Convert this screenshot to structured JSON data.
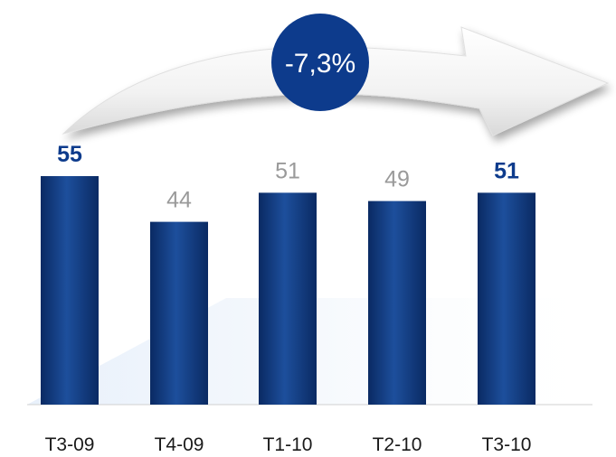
{
  "chart_data": {
    "type": "bar",
    "categories": [
      "T3-09",
      "T4-09",
      "T1-10",
      "T2-10",
      "T3-10"
    ],
    "values": [
      55,
      44,
      51,
      49,
      51
    ],
    "value_labels": [
      "55",
      "44",
      "51",
      "49",
      "51"
    ],
    "highlighted": [
      true,
      false,
      false,
      false,
      true
    ],
    "ylim": [
      0,
      55
    ],
    "change_badge": "-7,3%",
    "colors": {
      "bar_dark": "#0a2a63",
      "bar_light": "#1d4f9c",
      "highlight_label": "#0d3b8c",
      "muted_label": "#9a9a9a",
      "badge_fill": "#0d3b8c",
      "badge_text": "#ffffff"
    }
  }
}
